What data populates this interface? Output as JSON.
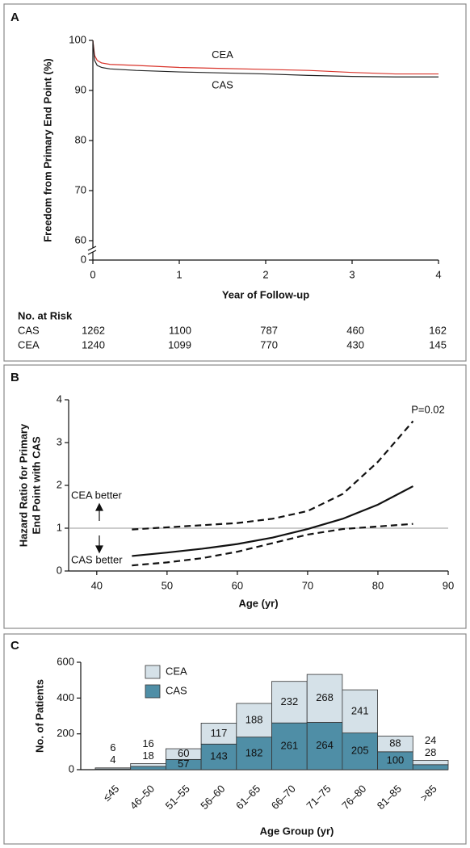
{
  "chart_data": [
    {
      "type": "line",
      "panel": "A",
      "xlabel": "Year of Follow-up",
      "ylabel": "Freedom from Primary End Point (%)",
      "x": [
        0,
        0.02,
        0.05,
        0.1,
        0.2,
        0.5,
        1,
        1.5,
        2,
        2.5,
        3,
        3.5,
        4
      ],
      "xlim": [
        0,
        4
      ],
      "xticks": [
        0,
        1,
        2,
        3,
        4
      ],
      "ylim": [
        0,
        100
      ],
      "ybreak": [
        0,
        60
      ],
      "yticks": [
        0,
        60,
        70,
        80,
        90,
        100
      ],
      "series": [
        {
          "name": "CEA",
          "color": "#d9342b",
          "values": [
            100,
            97,
            96,
            95.5,
            95.2,
            95,
            94.6,
            94.4,
            94.2,
            94.0,
            93.6,
            93.3,
            93.3
          ]
        },
        {
          "name": "CAS",
          "color": "#222222",
          "values": [
            100,
            96,
            95,
            94.6,
            94.3,
            94.0,
            93.7,
            93.5,
            93.3,
            93.0,
            92.8,
            92.7,
            92.7
          ]
        }
      ],
      "at_risk": {
        "title": "No. at Risk",
        "rows": [
          {
            "name": "CAS",
            "values": [
              1262,
              1100,
              787,
              460,
              162
            ]
          },
          {
            "name": "CEA",
            "values": [
              1240,
              1099,
              770,
              430,
              145
            ]
          }
        ]
      }
    },
    {
      "type": "line",
      "panel": "B",
      "xlabel": "Age (yr)",
      "ylabel": [
        "Hazard Ratio for Primary",
        "End Point with CAS"
      ],
      "x": [
        45,
        50,
        55,
        60,
        65,
        70,
        75,
        80,
        85
      ],
      "xlim": [
        36,
        90
      ],
      "xticks": [
        40,
        50,
        60,
        70,
        80,
        90
      ],
      "ylim": [
        0,
        4
      ],
      "yticks": [
        0,
        1,
        2,
        3,
        4
      ],
      "reference": 1,
      "annotations": [
        "P=0.02",
        "CEA better",
        "CAS better"
      ],
      "series": [
        {
          "color": "#111111",
          "style": "solid",
          "values": [
            0.35,
            0.43,
            0.52,
            0.63,
            0.78,
            0.98,
            1.22,
            1.55,
            1.98
          ]
        },
        {
          "color": "#111111",
          "style": "dashed",
          "values": [
            0.97,
            1.02,
            1.07,
            1.12,
            1.22,
            1.4,
            1.8,
            2.55,
            3.5
          ]
        },
        {
          "color": "#111111",
          "style": "dashed",
          "values": [
            0.13,
            0.2,
            0.3,
            0.45,
            0.65,
            0.85,
            0.98,
            1.04,
            1.1
          ]
        }
      ]
    },
    {
      "type": "bar",
      "stacked": true,
      "panel": "C",
      "xlabel": "Age Group (yr)",
      "ylabel": "No. of Patients",
      "categories": [
        "≤45",
        "46–50",
        "51–55",
        "56–60",
        "61–65",
        "66–70",
        "71–75",
        "76–80",
        "81–85",
        ">85"
      ],
      "ylim": [
        0,
        600
      ],
      "yticks": [
        0,
        200,
        400,
        600
      ],
      "legend": "upper left",
      "series": [
        {
          "name": "CEA",
          "color": "#d5e1e8",
          "values": [
            6,
            16,
            60,
            117,
            188,
            232,
            268,
            241,
            88,
            24
          ]
        },
        {
          "name": "CAS",
          "color": "#4f8ea6",
          "values": [
            4,
            18,
            57,
            143,
            182,
            261,
            264,
            205,
            100,
            28
          ]
        }
      ]
    }
  ]
}
